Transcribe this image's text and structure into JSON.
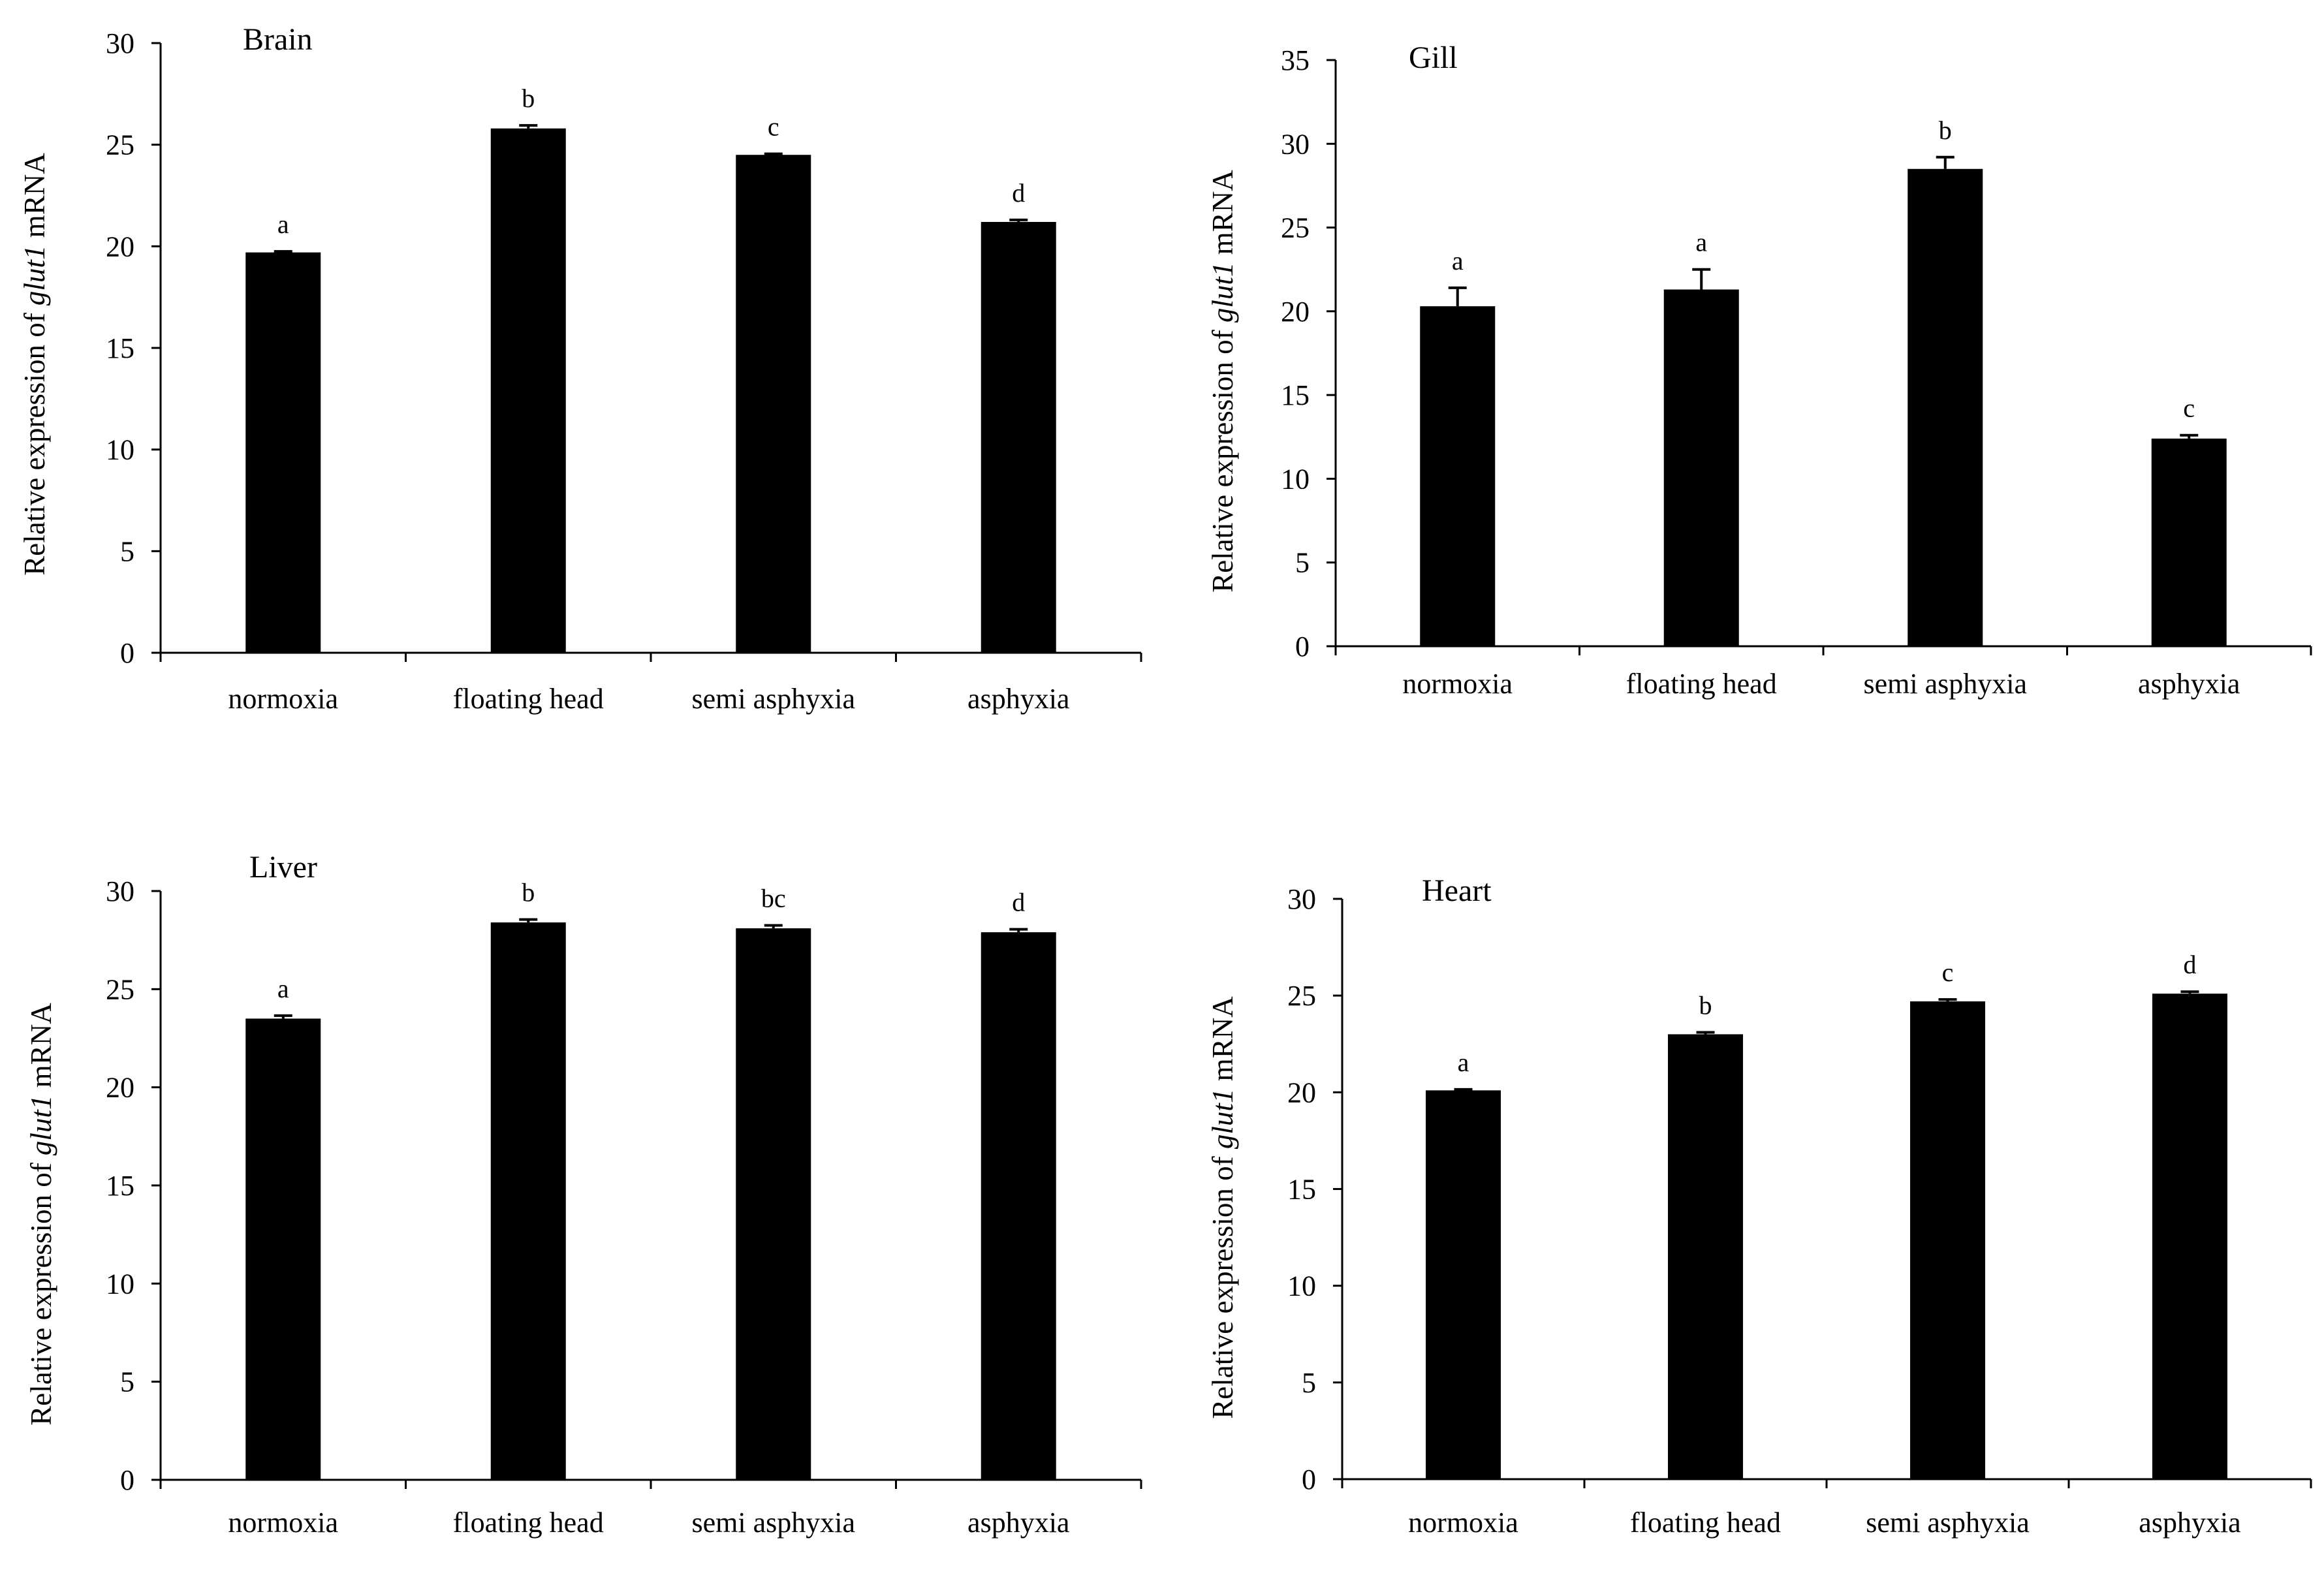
{
  "figure": {
    "bar_color": "#000000",
    "axis_color": "#000000",
    "background": "#ffffff"
  },
  "chart_data": [
    {
      "type": "bar",
      "title": "Brain",
      "ylabel_pre": "Relative expression of ",
      "ylabel_gene": "glut1",
      "ylabel_post": " mRNA",
      "categories": [
        "normoxia",
        "floating head",
        "semi asphyxia",
        "asphyxia"
      ],
      "values": [
        19.7,
        25.8,
        24.5,
        21.2
      ],
      "errors": [
        0.05,
        0.15,
        0.05,
        0.1
      ],
      "significance": [
        "a",
        "b",
        "c",
        "d"
      ],
      "ylim": [
        0,
        30
      ],
      "yticks": [
        0,
        5,
        10,
        15,
        20,
        25,
        30
      ],
      "ytick_labels": [
        "0",
        "5",
        "10",
        "15",
        "20",
        "25",
        "30"
      ]
    },
    {
      "type": "bar",
      "title": "Gill",
      "ylabel_pre": "Relative expression of ",
      "ylabel_gene": "glut1",
      "ylabel_post": " mRNA",
      "categories": [
        "normoxia",
        "floating head",
        "semi asphyxia",
        "asphyxia"
      ],
      "values": [
        20.3,
        21.3,
        28.5,
        12.4
      ],
      "errors": [
        1.1,
        1.2,
        0.7,
        0.2
      ],
      "significance": [
        "a",
        "a",
        "b",
        "c"
      ],
      "ylim": [
        0,
        35
      ],
      "yticks": [
        0,
        5,
        10,
        15,
        20,
        25,
        30,
        35
      ],
      "ytick_labels": [
        "0",
        "5",
        "10",
        "15",
        "20",
        "25",
        "30",
        "35"
      ]
    },
    {
      "type": "bar",
      "title": "Liver",
      "ylabel_pre": "Relative expression of ",
      "ylabel_gene": "glut1",
      "ylabel_post": " mRNA",
      "categories": [
        "normoxia",
        "floating head",
        "semi asphyxia",
        "asphyxia"
      ],
      "values": [
        23.5,
        28.4,
        28.1,
        27.9
      ],
      "errors": [
        0.15,
        0.15,
        0.15,
        0.15
      ],
      "significance": [
        "a",
        "b",
        "bc",
        "d"
      ],
      "ylim": [
        0,
        30
      ],
      "yticks": [
        0,
        5,
        10,
        15,
        20,
        25,
        30
      ],
      "ytick_labels": [
        "0",
        "5",
        "10",
        "15",
        "20",
        "25",
        "30"
      ]
    },
    {
      "type": "bar",
      "title": "Heart",
      "ylabel_pre": "Relative expression of ",
      "ylabel_gene": "glut1",
      "ylabel_post": " mRNA",
      "categories": [
        "normoxia",
        "floating head",
        "semi asphyxia",
        "asphyxia"
      ],
      "values": [
        20.1,
        23.0,
        24.7,
        25.1
      ],
      "errors": [
        0.05,
        0.1,
        0.1,
        0.1
      ],
      "significance": [
        "a",
        "b",
        "c",
        "d"
      ],
      "ylim": [
        0,
        30
      ],
      "yticks": [
        0,
        5,
        10,
        15,
        20,
        25,
        30
      ],
      "ytick_labels": [
        "0",
        "5",
        "10",
        "15",
        "20",
        "25",
        "30"
      ]
    }
  ]
}
